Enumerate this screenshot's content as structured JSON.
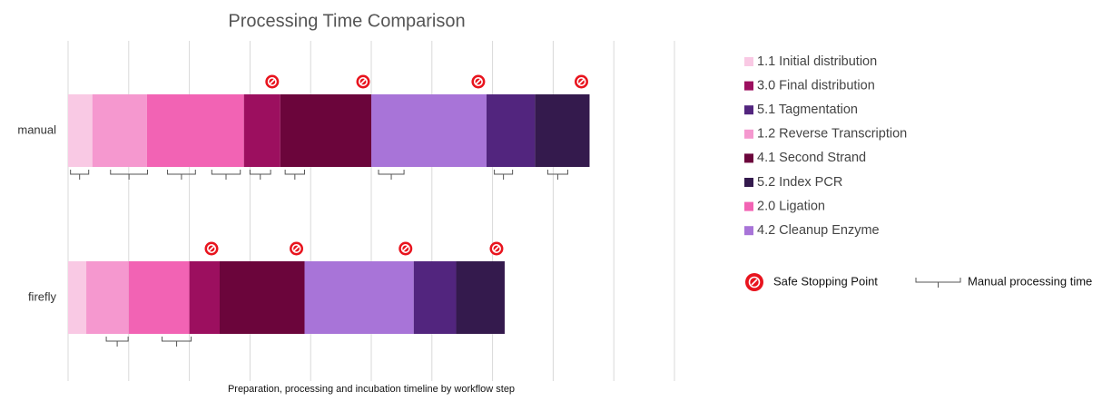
{
  "chart_data": {
    "type": "stacked-barh",
    "title": "Processing Time Comparison",
    "x_label": "Preparation, processing and incubation timeline by workflow step",
    "categories": [
      "manual",
      "firefly"
    ],
    "series": [
      {
        "name": "1.1 Initial distribution",
        "color": "#f9c9e4",
        "values": [
          0.4,
          0.3
        ]
      },
      {
        "name": "1.2 Reverse Transcription",
        "color": "#f598cf",
        "values": [
          0.9,
          0.7
        ]
      },
      {
        "name": "2.0 Ligation",
        "color": "#f263b4",
        "values": [
          1.6,
          1.0
        ]
      },
      {
        "name": "3.0 Final distribution",
        "color": "#9c0f5f",
        "values": [
          0.6,
          0.5
        ],
        "safe_stop": true
      },
      {
        "name": "4.1 Second Strand",
        "color": "#6b053b",
        "values": [
          1.5,
          1.4
        ],
        "safe_stop": true
      },
      {
        "name": "4.2 Cleanup Enzyme",
        "color": "#a874d8",
        "values": [
          1.9,
          1.8
        ],
        "safe_stop": true
      },
      {
        "name": "5.1 Tagmentation",
        "color": "#52257e",
        "values": [
          0.8,
          0.7
        ]
      },
      {
        "name": "5.2 Index PCR",
        "color": "#341a4d",
        "values": [
          0.9,
          0.8
        ],
        "safe_stop": true
      }
    ],
    "manual_time": [
      [
        [
          0.04,
          0.34
        ],
        [
          0.7,
          1.31
        ],
        [
          1.64,
          2.1
        ],
        [
          2.37,
          2.84
        ],
        [
          3.0,
          3.34
        ],
        [
          3.58,
          3.9
        ],
        [
          5.12,
          5.54
        ],
        [
          7.03,
          7.33
        ],
        [
          7.91,
          8.24
        ]
      ],
      [
        [
          0.63,
          0.99
        ],
        [
          1.55,
          2.03
        ]
      ]
    ],
    "safe_stop_label": "Safe Stopping Point",
    "manual_time_label": "Manual processing time",
    "xlim": [
      0,
      10
    ],
    "xticks": [
      0,
      1,
      2,
      3,
      4,
      5,
      6,
      7,
      8,
      9,
      10
    ],
    "grid": true
  }
}
